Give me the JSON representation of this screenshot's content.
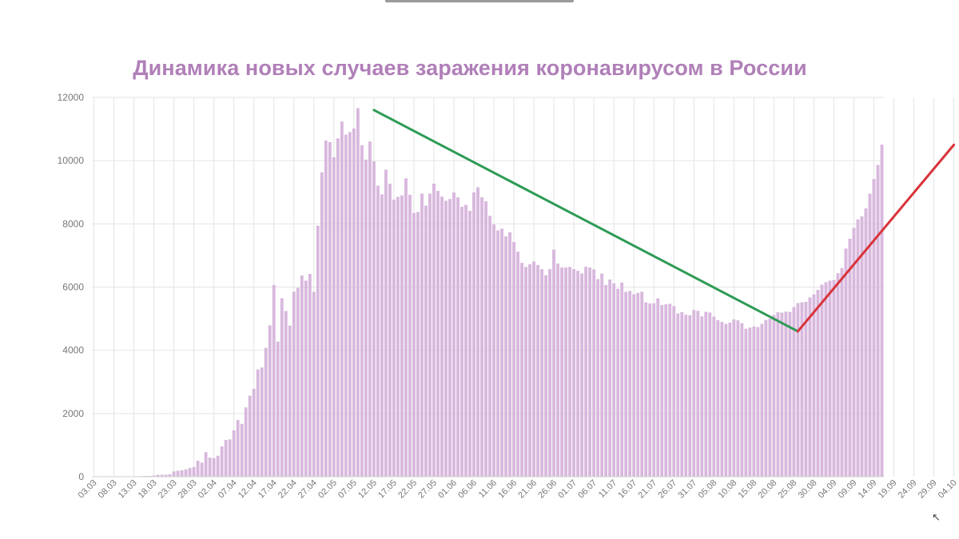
{
  "chart_data": {
    "type": "bar",
    "title": "Динамика новых случаев заражения коронавирусом в России",
    "ylim": [
      0,
      12000
    ],
    "yticks": [
      0,
      2000,
      4000,
      6000,
      8000,
      10000,
      12000
    ],
    "grid": true,
    "xtick_labels": [
      "03.03",
      "08.03",
      "13.03",
      "18.03",
      "23.03",
      "28.03",
      "02.04",
      "07.04",
      "12.04",
      "17.04",
      "22.04",
      "27.04",
      "02.05",
      "07.05",
      "12.05",
      "17.05",
      "22.05",
      "27.05",
      "01.06",
      "06.06",
      "11.06",
      "16.06",
      "21.06",
      "26.06",
      "01.07",
      "06.07",
      "11.07",
      "16.07",
      "21.07",
      "26.07",
      "31.07",
      "05.08",
      "10.08",
      "15.08",
      "20.08",
      "25.08",
      "30.08",
      "04.09",
      "09.09",
      "14.09",
      "19.09",
      "24.09",
      "29.09",
      "04.10"
    ],
    "colors": {
      "bars": "#d9b8de",
      "bar_edge": "#c9a2cf",
      "trend_down": "#2e9b55",
      "trend_up": "#d8333a",
      "title": "#b07fb8",
      "grid": "#e4e4e4",
      "axis_text": "#777777"
    },
    "series": [
      {
        "values": [
          3,
          0,
          2,
          1,
          3,
          1,
          4,
          2,
          5,
          4,
          6,
          10,
          14,
          18,
          20,
          33,
          52,
          54,
          57,
          71,
          163,
          182,
          196,
          228,
          270,
          302,
          501,
          440,
          771,
          601,
          582,
          658,
          954,
          1154,
          1175,
          1459,
          1786,
          1667,
          2186,
          2558,
          2774,
          3388,
          3448,
          4070,
          4785,
          6060,
          4268,
          5642,
          5236,
          4774,
          5849,
          5966,
          6361,
          6198,
          6411,
          5841,
          7933,
          9623,
          10633,
          10581,
          10102,
          10699,
          11231,
          10817,
          10899,
          11012,
          11656,
          10482,
          10028,
          10598,
          9974,
          9200,
          8926,
          9709,
          9263,
          8764,
          8849,
          8894,
          9434,
          8915,
          8338,
          8371,
          8952,
          8572,
          8952,
          9268,
          9035,
          8855,
          8726,
          8779,
          8985,
          8831,
          8536,
          8595,
          8404,
          8987,
          9150,
          8835,
          8706,
          8248,
          7972,
          7790,
          7843,
          7600,
          7728,
          7425,
          7113,
          6760,
          6632,
          6719,
          6800,
          6693,
          6556,
          6368,
          6562,
          7176,
          6736,
          6611,
          6615,
          6632,
          6562,
          6509,
          6428,
          6635,
          6611,
          6556,
          6248,
          6422,
          6060,
          6234,
          6109,
          5940,
          6135,
          5842,
          5871,
          5765,
          5811,
          5848,
          5509,
          5475,
          5482,
          5635,
          5427,
          5448,
          5462,
          5394,
          5159,
          5204,
          5118,
          5102,
          5267,
          5241,
          5065,
          5212,
          5189,
          5057,
          4945,
          4892,
          4828,
          4870,
          4969,
          4941,
          4852,
          4676,
          4711,
          4748,
          4729,
          4829,
          4952,
          4993,
          5110,
          5195,
          5185,
          5218,
          5205,
          5363,
          5488,
          5509,
          5529,
          5670,
          5762,
          5905,
          6065,
          6148,
          6196,
          6215,
          6431,
          6595,
          7212,
          7523,
          7867,
          8135,
          8232,
          8481,
          8945,
          9412,
          9859,
          10499
        ]
      }
    ],
    "annotations": [
      {
        "type": "trend-line",
        "color": "green",
        "from_index": 70,
        "from_value": 11600,
        "to_index": 176,
        "to_value": 4600
      },
      {
        "type": "trend-line",
        "color": "red",
        "from_index": 176,
        "from_value": 4600,
        "to_index": 215,
        "to_value": 10500
      }
    ]
  },
  "ui": {
    "corner_icon": "cursor-icon"
  }
}
